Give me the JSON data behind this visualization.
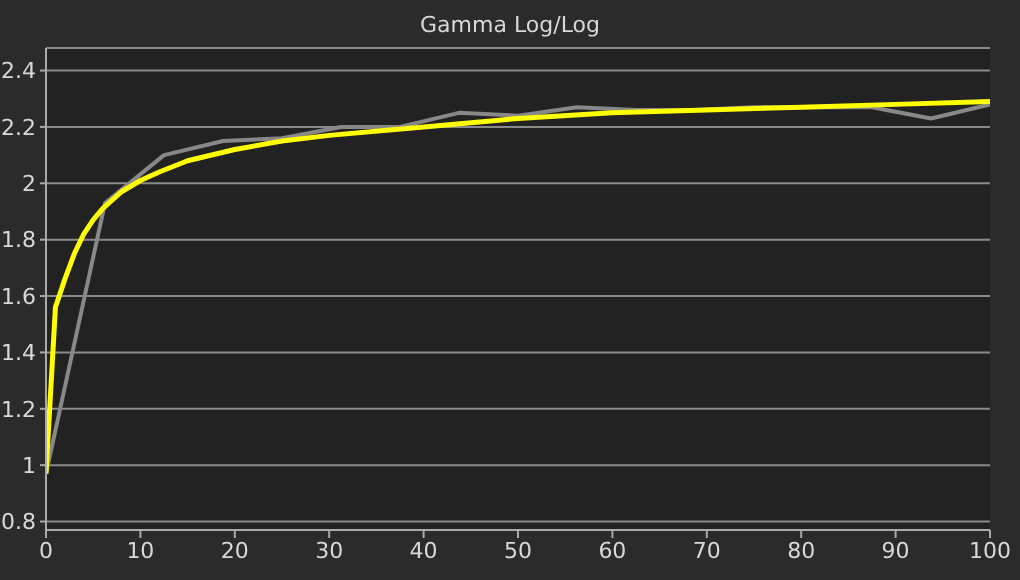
{
  "chart_data": {
    "type": "line",
    "title": "Gamma Log/Log",
    "xlim": [
      0,
      100
    ],
    "xticks": [
      0,
      10,
      20,
      30,
      40,
      50,
      60,
      70,
      80,
      90,
      100
    ],
    "ylim": [
      0.77,
      2.48
    ],
    "yticks": [
      0.8,
      1,
      1.2,
      1.4,
      1.6,
      1.8,
      2,
      2.2,
      2.4
    ],
    "grid": "y",
    "marker": "none",
    "line_style": "solid",
    "series": [
      {
        "color": "#888888",
        "x": [
          0,
          6.25,
          12.5,
          18.75,
          25,
          31.25,
          37.5,
          43.75,
          50,
          56.25,
          62.5,
          68.75,
          75,
          81.25,
          87.5,
          93.75,
          100
        ],
        "values": [
          0.97,
          1.93,
          2.1,
          2.15,
          2.16,
          2.2,
          2.2,
          2.25,
          2.24,
          2.27,
          2.26,
          2.26,
          2.27,
          2.27,
          2.27,
          2.23,
          2.28
        ]
      },
      {
        "color": "#ffff00",
        "x": [
          0,
          1,
          2,
          3,
          4,
          5,
          6,
          8,
          10,
          12,
          15,
          20,
          25,
          30,
          40,
          50,
          60,
          70,
          80,
          90,
          100
        ],
        "values": [
          0.97,
          1.56,
          1.66,
          1.75,
          1.82,
          1.87,
          1.91,
          1.97,
          2.01,
          2.04,
          2.08,
          2.12,
          2.15,
          2.17,
          2.2,
          2.23,
          2.25,
          2.26,
          2.27,
          2.28,
          2.29
        ]
      }
    ]
  }
}
